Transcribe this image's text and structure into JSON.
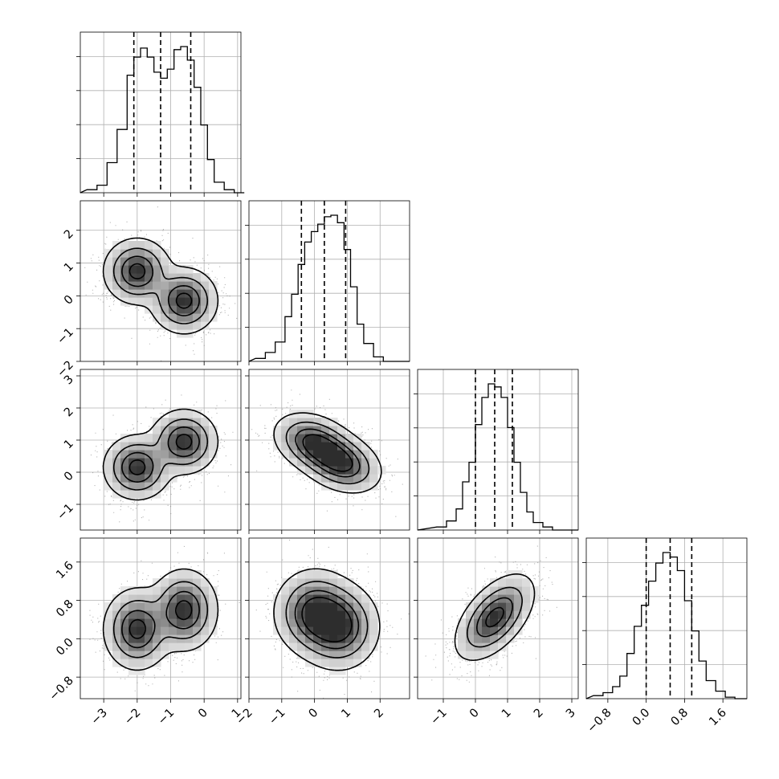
{
  "figure": {
    "title": ""
  },
  "chart_data": {
    "type": "corner",
    "variables": [
      {
        "index": 0,
        "label": "",
        "range": [
          -3.7,
          1.1
        ],
        "ticks": [
          -3,
          -2,
          -1,
          0,
          1
        ],
        "tick_labels": [
          "−3",
          "−2",
          "−1",
          "0",
          "1"
        ],
        "quantiles": [
          -2.1,
          -1.3,
          -0.4
        ],
        "hist_bins": [
          -3.5,
          -3.2,
          -2.9,
          -2.6,
          -2.3,
          -2.1,
          -1.9,
          -1.7,
          -1.5,
          -1.3,
          -1.1,
          -0.9,
          -0.7,
          -0.5,
          -0.3,
          -0.1,
          0.1,
          0.3,
          0.6,
          0.9
        ],
        "hist_counts": [
          0.02,
          0.05,
          0.2,
          0.42,
          0.78,
          0.9,
          0.96,
          0.9,
          0.8,
          0.76,
          0.82,
          0.95,
          0.97,
          0.88,
          0.7,
          0.45,
          0.22,
          0.07,
          0.02,
          0.0
        ]
      },
      {
        "index": 1,
        "label": "",
        "range": [
          -2.0,
          2.9
        ],
        "ticks": [
          -2,
          -1,
          0,
          1,
          2
        ],
        "tick_labels": [
          "−2",
          "−1",
          "0",
          "1",
          "2"
        ],
        "quantiles": [
          -0.4,
          0.3,
          0.95
        ],
        "hist_bins": [
          -1.8,
          -1.5,
          -1.2,
          -0.9,
          -0.7,
          -0.5,
          -0.3,
          -0.1,
          0.1,
          0.3,
          0.5,
          0.7,
          0.9,
          1.1,
          1.3,
          1.5,
          1.8,
          2.1
        ],
        "hist_counts": [
          0.02,
          0.06,
          0.13,
          0.3,
          0.45,
          0.65,
          0.8,
          0.87,
          0.92,
          0.97,
          0.98,
          0.93,
          0.75,
          0.5,
          0.25,
          0.12,
          0.03,
          0.0
        ]
      },
      {
        "index": 2,
        "label": "",
        "range": [
          -1.8,
          3.2
        ],
        "ticks": [
          -1,
          0,
          1,
          2,
          3
        ],
        "tick_labels": [
          "−1",
          "0",
          "1",
          "2",
          "3"
        ],
        "quantiles": [
          0.0,
          0.6,
          1.15
        ],
        "hist_bins": [
          -1.2,
          -0.9,
          -0.6,
          -0.4,
          -0.2,
          0.0,
          0.2,
          0.4,
          0.6,
          0.8,
          1.0,
          1.2,
          1.4,
          1.6,
          1.8,
          2.1,
          2.4
        ],
        "hist_counts": [
          0.02,
          0.06,
          0.14,
          0.32,
          0.45,
          0.7,
          0.88,
          0.97,
          0.95,
          0.88,
          0.68,
          0.45,
          0.25,
          0.12,
          0.05,
          0.02,
          0.0
        ]
      },
      {
        "index": 3,
        "label": "",
        "range": [
          -1.25,
          2.1
        ],
        "ticks": [
          -0.8,
          0.0,
          0.8,
          1.6
        ],
        "tick_labels": [
          "−0.8",
          "0.0",
          "0.8",
          "1.6"
        ],
        "quantiles": [
          0.0,
          0.5,
          0.95
        ],
        "hist_bins": [
          -1.1,
          -0.9,
          -0.7,
          -0.55,
          -0.4,
          -0.25,
          -0.1,
          0.05,
          0.2,
          0.35,
          0.5,
          0.65,
          0.8,
          0.95,
          1.1,
          1.25,
          1.45,
          1.65,
          1.85
        ],
        "hist_counts": [
          0.02,
          0.04,
          0.08,
          0.15,
          0.3,
          0.48,
          0.62,
          0.78,
          0.9,
          0.97,
          0.94,
          0.85,
          0.65,
          0.45,
          0.25,
          0.12,
          0.05,
          0.01,
          0.0
        ]
      }
    ],
    "pairs": [
      {
        "x": 0,
        "y": 1,
        "modes": [
          {
            "mx": -2.0,
            "my": 0.75,
            "sx": 0.45,
            "sy": 0.45,
            "rho": 0.0,
            "w": 0.5
          },
          {
            "mx": -0.6,
            "my": -0.15,
            "sx": 0.45,
            "sy": 0.45,
            "rho": 0.0,
            "w": 0.5
          }
        ]
      },
      {
        "x": 0,
        "y": 2,
        "modes": [
          {
            "mx": -2.0,
            "my": 0.15,
            "sx": 0.45,
            "sy": 0.45,
            "rho": 0.0,
            "w": 0.5
          },
          {
            "mx": -0.6,
            "my": 0.95,
            "sx": 0.45,
            "sy": 0.45,
            "rho": 0.0,
            "w": 0.5
          }
        ]
      },
      {
        "x": 1,
        "y": 2,
        "modes": [
          {
            "mx": 0.0,
            "my": 0.9,
            "sx": 0.55,
            "sy": 0.42,
            "rho": -0.3,
            "w": 0.5
          },
          {
            "mx": 0.8,
            "my": 0.3,
            "sx": 0.55,
            "sy": 0.42,
            "rho": -0.3,
            "w": 0.5
          }
        ]
      },
      {
        "x": 0,
        "y": 3,
        "modes": [
          {
            "mx": -2.0,
            "my": 0.2,
            "sx": 0.45,
            "sy": 0.38,
            "rho": 0.0,
            "w": 0.5
          },
          {
            "mx": -0.6,
            "my": 0.6,
            "sx": 0.45,
            "sy": 0.38,
            "rho": 0.0,
            "w": 0.5
          }
        ]
      },
      {
        "x": 1,
        "y": 3,
        "modes": [
          {
            "mx": 0.0,
            "my": 0.55,
            "sx": 0.55,
            "sy": 0.4,
            "rho": 0.0,
            "w": 0.5
          },
          {
            "mx": 0.75,
            "my": 0.25,
            "sx": 0.55,
            "sy": 0.4,
            "rho": 0.0,
            "w": 0.5
          }
        ]
      },
      {
        "x": 2,
        "y": 3,
        "modes": [
          {
            "mx": 0.6,
            "my": 0.45,
            "sx": 0.55,
            "sy": 0.4,
            "rho": 0.55,
            "w": 1.0
          }
        ]
      }
    ],
    "contour_levels": [
      0.88,
      0.6,
      0.3,
      0.08
    ],
    "grid": true,
    "legend": "none"
  }
}
